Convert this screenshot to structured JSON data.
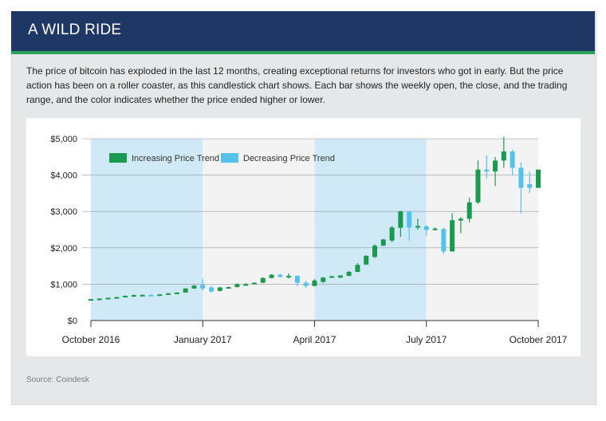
{
  "header": {
    "title": "A WILD RIDE"
  },
  "description": "The price of bitcoin has exploded in the last 12 months, creating exceptional returns for investors who got in early. But the price action has been on a roller coaster, as this candlestick chart shows. Each bar shows the weekly open, the close, and the trading range, and the color indicates whether the price ended higher or lower.",
  "source": "Source: Coindesk",
  "colors": {
    "increasing": "#1a9a4f",
    "decreasing": "#55c2ec",
    "band": "#cfe9f7",
    "header": "#1f3764",
    "rule": "#29a35a"
  },
  "chart_data": {
    "type": "candlestick",
    "title": "",
    "xlabel": "",
    "ylabel": "",
    "ylim": [
      0,
      5000
    ],
    "grid": true,
    "legend_position": "top-left",
    "y_ticks": [
      {
        "value": 0,
        "label": "$0"
      },
      {
        "value": 1000,
        "label": "$1,000"
      },
      {
        "value": 2000,
        "label": "$2,000"
      },
      {
        "value": 3000,
        "label": "$3,000"
      },
      {
        "value": 4000,
        "label": "$4,000"
      },
      {
        "value": 5000,
        "label": "$5,000"
      }
    ],
    "x_ticks": [
      {
        "week": 0,
        "label": "October 2016"
      },
      {
        "week": 13,
        "label": "January 2017"
      },
      {
        "week": 26,
        "label": "April 2017"
      },
      {
        "week": 39,
        "label": "July 2017"
      },
      {
        "week": 52,
        "label": "October 2017"
      }
    ],
    "shaded_periods": [
      [
        0,
        13
      ],
      [
        26,
        39
      ]
    ],
    "legend": [
      {
        "label": "Increasing Price Trend",
        "kind": "increasing"
      },
      {
        "label": "Decreasing Price Trend",
        "kind": "decreasing"
      }
    ],
    "candles": [
      {
        "week": 0,
        "open": 585,
        "close": 590,
        "high": 595,
        "low": 580
      },
      {
        "week": 1,
        "open": 590,
        "close": 605,
        "high": 612,
        "low": 585
      },
      {
        "week": 2,
        "open": 605,
        "close": 625,
        "high": 632,
        "low": 600
      },
      {
        "week": 3,
        "open": 625,
        "close": 645,
        "high": 655,
        "low": 618
      },
      {
        "week": 4,
        "open": 645,
        "close": 680,
        "high": 690,
        "low": 640
      },
      {
        "week": 5,
        "open": 680,
        "close": 700,
        "high": 715,
        "low": 670
      },
      {
        "week": 6,
        "open": 700,
        "close": 705,
        "high": 718,
        "low": 690
      },
      {
        "week": 7,
        "open": 705,
        "close": 695,
        "high": 720,
        "low": 685
      },
      {
        "week": 8,
        "open": 695,
        "close": 720,
        "high": 730,
        "low": 690
      },
      {
        "week": 9,
        "open": 720,
        "close": 750,
        "high": 760,
        "low": 712
      },
      {
        "week": 10,
        "open": 750,
        "close": 770,
        "high": 780,
        "low": 740
      },
      {
        "week": 11,
        "open": 770,
        "close": 880,
        "high": 900,
        "low": 765
      },
      {
        "week": 12,
        "open": 880,
        "close": 960,
        "high": 980,
        "low": 870
      },
      {
        "week": 13,
        "open": 980,
        "close": 880,
        "high": 1140,
        "low": 820
      },
      {
        "week": 14,
        "open": 910,
        "close": 800,
        "high": 960,
        "low": 760
      },
      {
        "week": 15,
        "open": 815,
        "close": 910,
        "high": 930,
        "low": 800
      },
      {
        "week": 16,
        "open": 910,
        "close": 920,
        "high": 935,
        "low": 900
      },
      {
        "week": 17,
        "open": 920,
        "close": 1000,
        "high": 1020,
        "low": 910
      },
      {
        "week": 18,
        "open": 1000,
        "close": 1000,
        "high": 1030,
        "low": 985
      },
      {
        "week": 19,
        "open": 1000,
        "close": 1040,
        "high": 1050,
        "low": 990
      },
      {
        "week": 20,
        "open": 1040,
        "close": 1170,
        "high": 1190,
        "low": 1030
      },
      {
        "week": 21,
        "open": 1170,
        "close": 1260,
        "high": 1280,
        "low": 1160
      },
      {
        "week": 22,
        "open": 1260,
        "close": 1200,
        "high": 1290,
        "low": 1180
      },
      {
        "week": 23,
        "open": 1200,
        "close": 1230,
        "high": 1300,
        "low": 1150
      },
      {
        "week": 24,
        "open": 1230,
        "close": 1040,
        "high": 1250,
        "low": 940
      },
      {
        "week": 25,
        "open": 1040,
        "close": 950,
        "high": 1100,
        "low": 900
      },
      {
        "week": 26,
        "open": 950,
        "close": 1100,
        "high": 1140,
        "low": 940
      },
      {
        "week": 27,
        "open": 1060,
        "close": 1180,
        "high": 1200,
        "low": 1040
      },
      {
        "week": 28,
        "open": 1180,
        "close": 1220,
        "high": 1230,
        "low": 1170
      },
      {
        "week": 29,
        "open": 1180,
        "close": 1240,
        "high": 1250,
        "low": 1170
      },
      {
        "week": 30,
        "open": 1230,
        "close": 1340,
        "high": 1360,
        "low": 1220
      },
      {
        "week": 31,
        "open": 1340,
        "close": 1530,
        "high": 1580,
        "low": 1330
      },
      {
        "week": 32,
        "open": 1540,
        "close": 1780,
        "high": 1800,
        "low": 1530
      },
      {
        "week": 33,
        "open": 1750,
        "close": 2060,
        "high": 2100,
        "low": 1720
      },
      {
        "week": 34,
        "open": 2060,
        "close": 2230,
        "high": 2250,
        "low": 2050
      },
      {
        "week": 35,
        "open": 2200,
        "close": 2560,
        "high": 2600,
        "low": 2150
      },
      {
        "week": 36,
        "open": 2550,
        "close": 3000,
        "high": 3020,
        "low": 2300
      },
      {
        "week": 37,
        "open": 3000,
        "close": 2560,
        "high": 3000,
        "low": 2200
      },
      {
        "week": 38,
        "open": 2560,
        "close": 2600,
        "high": 2800,
        "low": 2500
      },
      {
        "week": 39,
        "open": 2590,
        "close": 2490,
        "high": 2620,
        "low": 2340
      },
      {
        "week": 40,
        "open": 2530,
        "close": 2530,
        "high": 2560,
        "low": 2480
      },
      {
        "week": 41,
        "open": 2520,
        "close": 1900,
        "high": 2550,
        "low": 1830
      },
      {
        "week": 42,
        "open": 1900,
        "close": 2760,
        "high": 2950,
        "low": 1900
      },
      {
        "week": 43,
        "open": 2750,
        "close": 2800,
        "high": 2850,
        "low": 2400
      },
      {
        "week": 44,
        "open": 2800,
        "close": 3250,
        "high": 3380,
        "low": 2700
      },
      {
        "week": 45,
        "open": 3250,
        "close": 4150,
        "high": 4400,
        "low": 3200
      },
      {
        "week": 46,
        "open": 4150,
        "close": 4100,
        "high": 4550,
        "low": 3900
      },
      {
        "week": 47,
        "open": 4100,
        "close": 4400,
        "high": 4500,
        "low": 3700
      },
      {
        "week": 48,
        "open": 4400,
        "close": 4650,
        "high": 5050,
        "low": 4200
      },
      {
        "week": 49,
        "open": 4650,
        "close": 4200,
        "high": 4700,
        "low": 4000
      },
      {
        "week": 50,
        "open": 4200,
        "close": 3650,
        "high": 4350,
        "low": 2950
      },
      {
        "week": 51,
        "open": 3750,
        "close": 3650,
        "high": 4100,
        "low": 3500
      },
      {
        "week": 52,
        "open": 3650,
        "close": 4150,
        "high": 4150,
        "low": 3650
      }
    ]
  }
}
